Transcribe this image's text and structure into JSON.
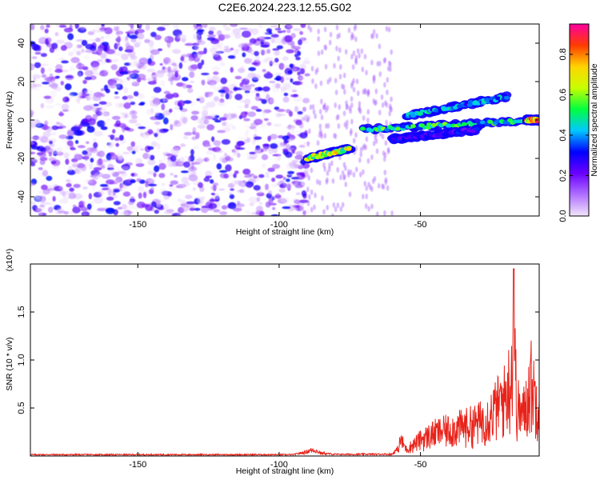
{
  "title": "C2E6.2024.223.12.55.G02",
  "chart_data": [
    {
      "type": "heatmap",
      "xlabel": "Height of straight line (km)",
      "ylabel": "Frequency (Hz)",
      "xlim": [
        -188,
        -8
      ],
      "ylim": [
        -50,
        50
      ],
      "x_ticks": [
        -150,
        -100,
        -50
      ],
      "x_tick_labels": [
        "-150",
        "-100",
        "-50"
      ],
      "y_ticks": [
        -40,
        -20,
        0,
        20,
        40
      ],
      "y_tick_labels": [
        "-40",
        "-20",
        "0",
        "20",
        "40"
      ],
      "colorbar": {
        "label": "Normalized spectral amplitude",
        "range": [
          0,
          0.95
        ],
        "ticks": [
          0.0,
          0.2,
          0.4,
          0.6,
          0.8
        ],
        "tick_labels": [
          "0.0",
          "0.2",
          "0.4",
          "0.6",
          "0.8"
        ],
        "colors": [
          "#f2e6fa",
          "#b070ff",
          "#6a00ff",
          "#0000ff",
          "#00c8ff",
          "#00ff40",
          "#c8ff00",
          "#ffd400",
          "#ff3b00",
          "#ff00a0"
        ]
      },
      "noise_region": {
        "x": [
          -188,
          -90
        ],
        "y": [
          -50,
          50
        ],
        "amplitude": 0.15
      },
      "features": [
        {
          "name": "segment-1",
          "x": [
            -90,
            -75
          ],
          "y": [
            -20,
            -15
          ],
          "amplitude": 0.8
        },
        {
          "name": "segment-2",
          "x": [
            -70,
            -8
          ],
          "y": [
            -5,
            0
          ],
          "amplitude": 0.6
        },
        {
          "name": "segment-3",
          "x": [
            -55,
            -20
          ],
          "y": [
            2,
            12
          ],
          "amplitude": 0.5
        },
        {
          "name": "segment-4",
          "x": [
            -60,
            -30
          ],
          "y": [
            -10,
            -5
          ],
          "amplitude": 0.35
        },
        {
          "name": "peak",
          "x": [
            -12,
            -8
          ],
          "y": [
            0,
            0
          ],
          "amplitude": 0.95
        }
      ]
    },
    {
      "type": "line",
      "xlabel": "Height of straight line (km)",
      "ylabel": "SNR (10 * v/v)",
      "y_multiplier": "(x10⁴)",
      "xlim": [
        -188,
        -8
      ],
      "ylim": [
        0,
        2.0
      ],
      "x_ticks": [
        -150,
        -100,
        -50
      ],
      "x_tick_labels": [
        "-150",
        "-100",
        "-50"
      ],
      "y_ticks": [
        0.5,
        1.0,
        1.5
      ],
      "y_tick_labels": [
        "0.5",
        "1.0",
        "1.5"
      ],
      "color": "#e8231a",
      "profile": [
        [
          -188,
          0.015
        ],
        [
          -95,
          0.015
        ],
        [
          -91,
          0.04
        ],
        [
          -88,
          0.07
        ],
        [
          -85,
          0.03
        ],
        [
          -80,
          0.018
        ],
        [
          -60,
          0.02
        ],
        [
          -58,
          0.08
        ],
        [
          -57,
          0.25
        ],
        [
          -55,
          0.1
        ],
        [
          -50,
          0.25
        ],
        [
          -45,
          0.35
        ],
        [
          -40,
          0.4
        ],
        [
          -35,
          0.45
        ],
        [
          -30,
          0.5
        ],
        [
          -26,
          0.6
        ],
        [
          -23,
          0.75
        ],
        [
          -20,
          0.9
        ],
        [
          -18,
          1.2
        ],
        [
          -17,
          1.95
        ],
        [
          -16,
          0.8
        ],
        [
          -14,
          0.6
        ],
        [
          -12,
          0.9
        ],
        [
          -11,
          1.15
        ],
        [
          -10,
          1.0
        ],
        [
          -9,
          0.85
        ],
        [
          -8,
          0.9
        ]
      ]
    }
  ]
}
